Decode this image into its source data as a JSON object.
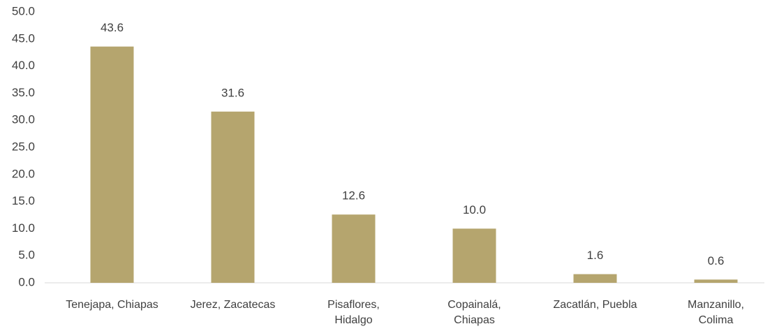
{
  "chart_data": {
    "type": "bar",
    "categories": [
      "Tenejapa, Chiapas",
      "Jerez, Zacatecas",
      "Pisaflores,\nHidalgo",
      "Copainalá,\nChiapas",
      "Zacatlán, Puebla",
      "Manzanillo,\nColima"
    ],
    "values": [
      43.6,
      31.6,
      12.6,
      10.0,
      1.6,
      0.6
    ],
    "value_labels": [
      "43.6",
      "31.6",
      "12.6",
      "10.0",
      "1.6",
      "0.6"
    ],
    "color": "#b5a56e",
    "ylim": [
      0,
      50
    ],
    "yticks": [
      {
        "value": 0,
        "label": "0.0"
      },
      {
        "value": 5,
        "label": "5.0"
      },
      {
        "value": 10,
        "label": "10.0"
      },
      {
        "value": 15,
        "label": "15.0"
      },
      {
        "value": 20,
        "label": "20.0"
      },
      {
        "value": 25,
        "label": "25.0"
      },
      {
        "value": 30,
        "label": "30.0"
      },
      {
        "value": 35,
        "label": "35.0"
      },
      {
        "value": 40,
        "label": "40.0"
      },
      {
        "value": 45,
        "label": "45.0"
      },
      {
        "value": 50,
        "label": "50.0"
      }
    ],
    "grid": false
  }
}
